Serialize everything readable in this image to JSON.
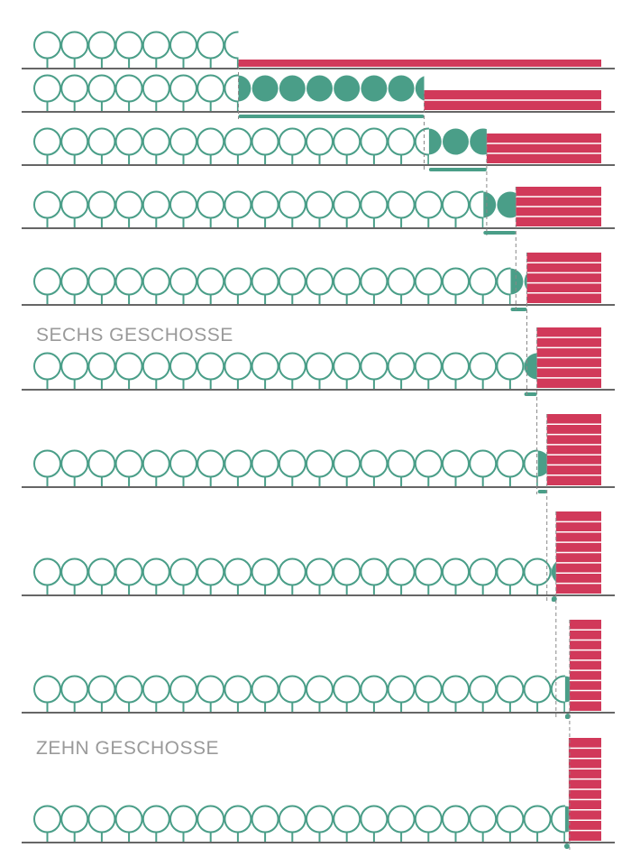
{
  "labels": {
    "six_storeys": "SECHS GESCHOSSE",
    "ten_storeys": "ZEHN GESCHOSSE"
  },
  "colors": {
    "tree": "#4a9e88",
    "building": "#d1395a",
    "ground": "#666666",
    "label": "#9a9a9a",
    "dash": "#888888"
  },
  "chart_data": {
    "type": "diagram",
    "description_units": "tree positions per row",
    "total_positions": 21,
    "rows": [
      {
        "storeys": 1,
        "open_trees": 7.5
      },
      {
        "storeys": 2,
        "open_trees": 7.5
      },
      {
        "storeys": 3,
        "open_trees": 14.5
      },
      {
        "storeys": 4,
        "open_trees": 16.5
      },
      {
        "storeys": 5,
        "open_trees": 17.5
      },
      {
        "storeys": 6,
        "open_trees": 18
      },
      {
        "storeys": 7,
        "open_trees": 18.5
      },
      {
        "storeys": 8,
        "open_trees": 19
      },
      {
        "storeys": 9,
        "open_trees": 19.5
      },
      {
        "storeys": 10,
        "open_trees": 19.5
      }
    ]
  }
}
